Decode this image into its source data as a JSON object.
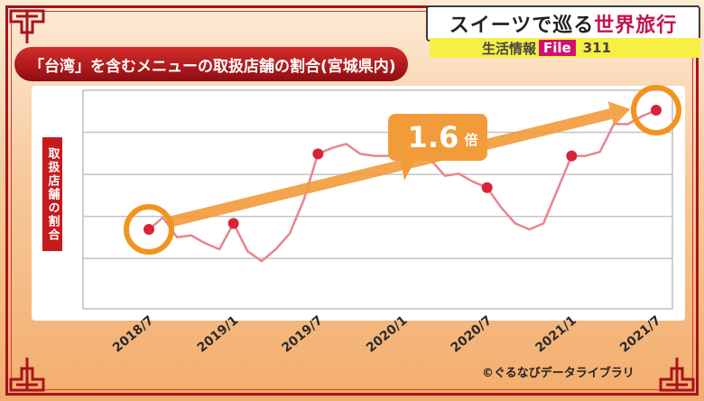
{
  "series_banner": {
    "text_main": "スイーツで巡る",
    "text_accent": "世界旅行"
  },
  "info_bar": {
    "label": "生活情報",
    "file_label": "File",
    "number": "311"
  },
  "chart_title": "「台湾」を含むメニューの取扱店舗の割合(宮城県内)",
  "credit": "©ぐるなびデータライブラリ",
  "colors": {
    "line": "#e8858e",
    "marker": "#d8233c",
    "arrow": "#f29b3a",
    "highlight": "#f0941f",
    "title_bg": "#b91c1c"
  },
  "chart_data": {
    "type": "line",
    "title": "「台湾」を含むメニューの取扱店舗の割合(宮城県内)",
    "ylabel": "取扱店舗の割合",
    "xlabel": "",
    "x_ticks": [
      "2018/7",
      "2019/1",
      "2019/7",
      "2020/1",
      "2020/7",
      "2021/1",
      "2021/7"
    ],
    "y_ticks_labeled": false,
    "grid": "horizontal",
    "y_index_range": [
      0.6,
      1.7
    ],
    "x": [
      "2018/7",
      "2018/8",
      "2018/9",
      "2018/10",
      "2018/11",
      "2018/12",
      "2019/1",
      "2019/2",
      "2019/3",
      "2019/4",
      "2019/5",
      "2019/6",
      "2019/7",
      "2019/8",
      "2019/9",
      "2019/10",
      "2019/11",
      "2019/12",
      "2020/1",
      "2020/2",
      "2020/3",
      "2020/4",
      "2020/5",
      "2020/6",
      "2020/7",
      "2020/8",
      "2020/9",
      "2020/10",
      "2020/11",
      "2020/12",
      "2021/1",
      "2021/2",
      "2021/3",
      "2021/4",
      "2021/5",
      "2021/6",
      "2021/7"
    ],
    "values": [
      1.0,
      1.06,
      0.96,
      0.97,
      0.93,
      0.9,
      1.03,
      0.89,
      0.84,
      0.9,
      0.98,
      1.15,
      1.38,
      1.41,
      1.43,
      1.38,
      1.37,
      1.37,
      1.38,
      1.42,
      1.35,
      1.27,
      1.28,
      1.24,
      1.21,
      1.11,
      1.03,
      1.0,
      1.03,
      1.2,
      1.37,
      1.37,
      1.39,
      1.53,
      1.53,
      1.57,
      1.6
    ],
    "markers_at": [
      "2018/7",
      "2019/1",
      "2019/7",
      "2020/1",
      "2020/7",
      "2021/1",
      "2021/7"
    ],
    "annotation": {
      "label": "1.6",
      "unit": "倍",
      "from": "2018/7",
      "to": "2021/7"
    }
  }
}
